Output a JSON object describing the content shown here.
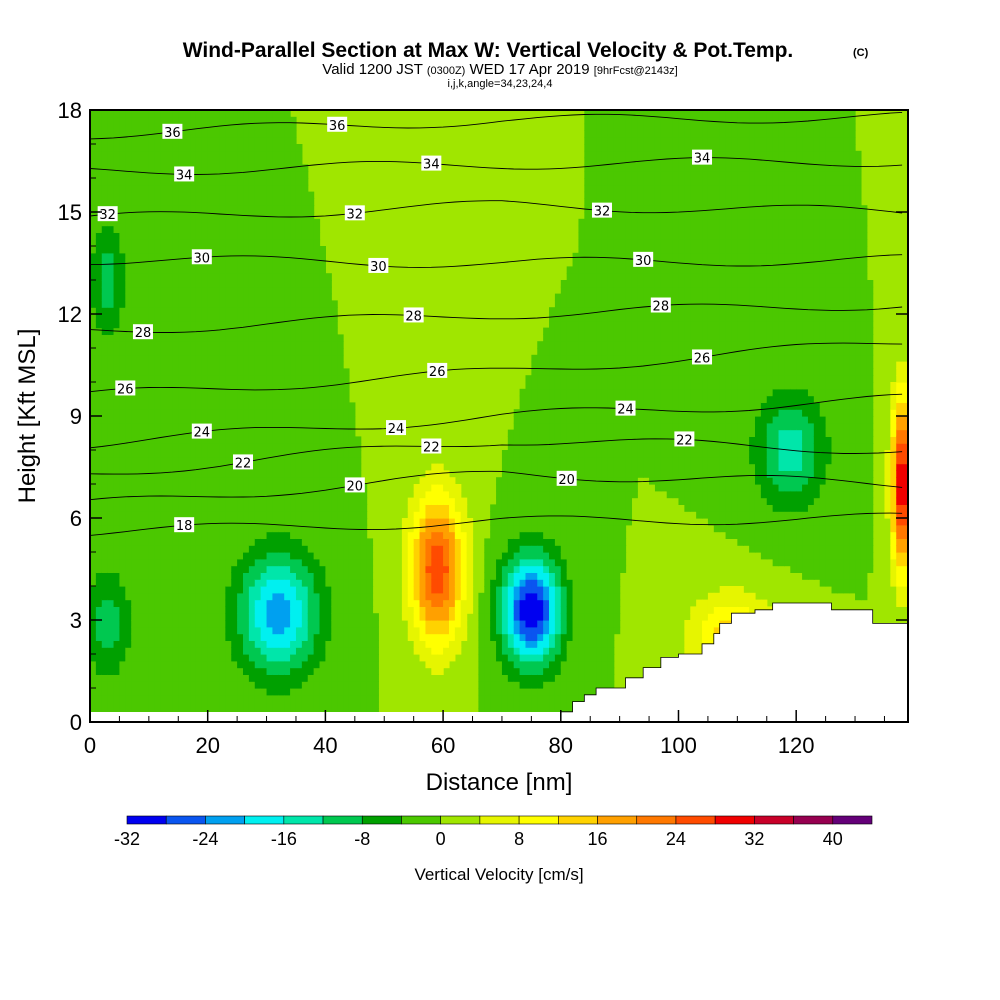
{
  "chart_data": {
    "type": "heatmap",
    "title": "Wind-Parallel Section at Max W: Vertical Velocity & Pot.Temp.",
    "copyright_mark": "(C)",
    "subtitle_valid": "Valid 1200 JST",
    "subtitle_utc": "(0300Z)",
    "subtitle_date": "WED 17 Apr 2019",
    "subtitle_fcst": "[9hrFcst@2143z]",
    "subtitle_indices": "i,j,k,angle=34,23,24,4",
    "xlabel": "Distance [nm]",
    "ylabel": "Height [Kft MSL]",
    "xlim": [
      0,
      139
    ],
    "ylim": [
      0,
      18
    ],
    "x_ticks": [
      "0",
      "20",
      "40",
      "60",
      "80",
      "100",
      "120"
    ],
    "y_ticks": [
      "0",
      "3",
      "6",
      "9",
      "12",
      "15",
      "18"
    ],
    "grid": false,
    "colorbar": {
      "label": "Vertical Velocity [cm/s]",
      "placement": "bottom",
      "bounds": [
        -32,
        -28,
        -24,
        -20,
        -16,
        -12,
        -8,
        -4,
        0,
        4,
        8,
        12,
        16,
        20,
        24,
        28,
        32,
        36,
        40,
        44
      ],
      "colors": [
        "#0000f0",
        "#0a55f0",
        "#00a0f0",
        "#00f0f0",
        "#00e6aa",
        "#00c850",
        "#00a000",
        "#4bc800",
        "#a0e600",
        "#e6f500",
        "#ffff00",
        "#ffd200",
        "#ffa000",
        "#ff7800",
        "#ff4b00",
        "#f00000",
        "#c80028",
        "#960050",
        "#640078"
      ],
      "tick_labels": [
        "-32",
        "-24",
        "-16",
        "-8",
        "0",
        "8",
        "16",
        "24",
        "32",
        "40"
      ]
    },
    "vertical_velocity_features": [
      {
        "kind": "downdraft",
        "x": 32,
        "y": 3.2,
        "peak": -22,
        "sx": 7,
        "sy": 1.8
      },
      {
        "kind": "downdraft",
        "x": 75,
        "y": 3.3,
        "peak": -32,
        "sx": 5,
        "sy": 1.6
      },
      {
        "kind": "updraft",
        "x": 59,
        "y": 4.5,
        "peak": 27,
        "sx": 4.5,
        "sy": 2.2
      },
      {
        "kind": "updraft",
        "x": 138,
        "y": 7,
        "peak": 32,
        "sx": 1.8,
        "sy": 2.6
      },
      {
        "kind": "updraft",
        "x": 109,
        "y": 2.5,
        "peak": 14,
        "sx": 7,
        "sy": 1.3
      },
      {
        "kind": "downdraft",
        "x": 119,
        "y": 8,
        "peak": -14,
        "sx": 6,
        "sy": 1.7
      },
      {
        "kind": "downdraft",
        "x": 3,
        "y": 2.9,
        "peak": -10,
        "sx": 4,
        "sy": 1.6
      },
      {
        "kind": "downdraft",
        "x": 3,
        "y": 13,
        "peak": -10,
        "sx": 3,
        "sy": 1.8
      }
    ],
    "potential_temperature_contours": [
      {
        "value": 18,
        "y_left": 5.6,
        "y_mid": 5.9,
        "y_right": 6.0,
        "labels": [
          {
            "text": "18",
            "x": 16
          }
        ]
      },
      {
        "value": 20,
        "y_left": 6.4,
        "y_mid": 7.3,
        "y_right": 7.0,
        "labels": [
          {
            "text": "20",
            "x": 45
          },
          {
            "text": "20",
            "x": 81
          }
        ]
      },
      {
        "value": 22,
        "y_left": 7.3,
        "y_mid": 8.3,
        "y_right": 8.0,
        "labels": [
          {
            "text": "22",
            "x": 26
          },
          {
            "text": "22",
            "x": 58
          },
          {
            "text": "22",
            "x": 101
          }
        ]
      },
      {
        "value": 24,
        "y_left": 8.2,
        "y_mid": 9.0,
        "y_right": 9.5,
        "labels": [
          {
            "text": "24",
            "x": 19
          },
          {
            "text": "24",
            "x": 52
          },
          {
            "text": "24",
            "x": 91
          }
        ]
      },
      {
        "value": 26,
        "y_left": 9.6,
        "y_mid": 10.3,
        "y_right": 11.2,
        "labels": [
          {
            "text": "26",
            "x": 6
          },
          {
            "text": "26",
            "x": 59
          },
          {
            "text": "26",
            "x": 104
          }
        ]
      },
      {
        "value": 28,
        "y_left": 11.5,
        "y_mid": 12.0,
        "y_right": 12.3,
        "labels": [
          {
            "text": "28",
            "x": 9
          },
          {
            "text": "28",
            "x": 55
          },
          {
            "text": "28",
            "x": 97
          }
        ]
      },
      {
        "value": 30,
        "y_left": 13.6,
        "y_mid": 13.5,
        "y_right": 13.6,
        "labels": [
          {
            "text": "30",
            "x": 19
          },
          {
            "text": "30",
            "x": 49
          },
          {
            "text": "30",
            "x": 94
          }
        ]
      },
      {
        "value": 32,
        "y_left": 14.8,
        "y_mid": 15.2,
        "y_right": 15.0,
        "labels": [
          {
            "text": "32",
            "x": 3
          },
          {
            "text": "32",
            "x": 45
          },
          {
            "text": "32",
            "x": 87
          }
        ]
      },
      {
        "value": 34,
        "y_left": 16.2,
        "y_mid": 16.4,
        "y_right": 16.5,
        "labels": [
          {
            "text": "34",
            "x": 16
          },
          {
            "text": "34",
            "x": 58
          },
          {
            "text": "34",
            "x": 104
          }
        ]
      },
      {
        "value": 36,
        "y_left": 17.3,
        "y_mid": 17.7,
        "y_right": 17.8,
        "labels": [
          {
            "text": "36",
            "x": 14
          },
          {
            "text": "36",
            "x": 42
          }
        ]
      }
    ],
    "terrain_kft": [
      {
        "x": 80,
        "h": 0.3
      },
      {
        "x": 82,
        "h": 0.6
      },
      {
        "x": 84,
        "h": 0.8
      },
      {
        "x": 86,
        "h": 1.0
      },
      {
        "x": 90,
        "h": 1.0
      },
      {
        "x": 91,
        "h": 1.3
      },
      {
        "x": 94,
        "h": 1.6
      },
      {
        "x": 97,
        "h": 1.9
      },
      {
        "x": 100,
        "h": 2.0
      },
      {
        "x": 103,
        "h": 2.0
      },
      {
        "x": 104,
        "h": 2.3
      },
      {
        "x": 106,
        "h": 2.6
      },
      {
        "x": 107,
        "h": 2.9
      },
      {
        "x": 109,
        "h": 3.2
      },
      {
        "x": 113,
        "h": 3.3
      },
      {
        "x": 116,
        "h": 3.5
      },
      {
        "x": 125,
        "h": 3.5
      },
      {
        "x": 126,
        "h": 3.3
      },
      {
        "x": 132,
        "h": 3.3
      },
      {
        "x": 133,
        "h": 2.9
      },
      {
        "x": 139,
        "h": 2.9
      }
    ]
  }
}
